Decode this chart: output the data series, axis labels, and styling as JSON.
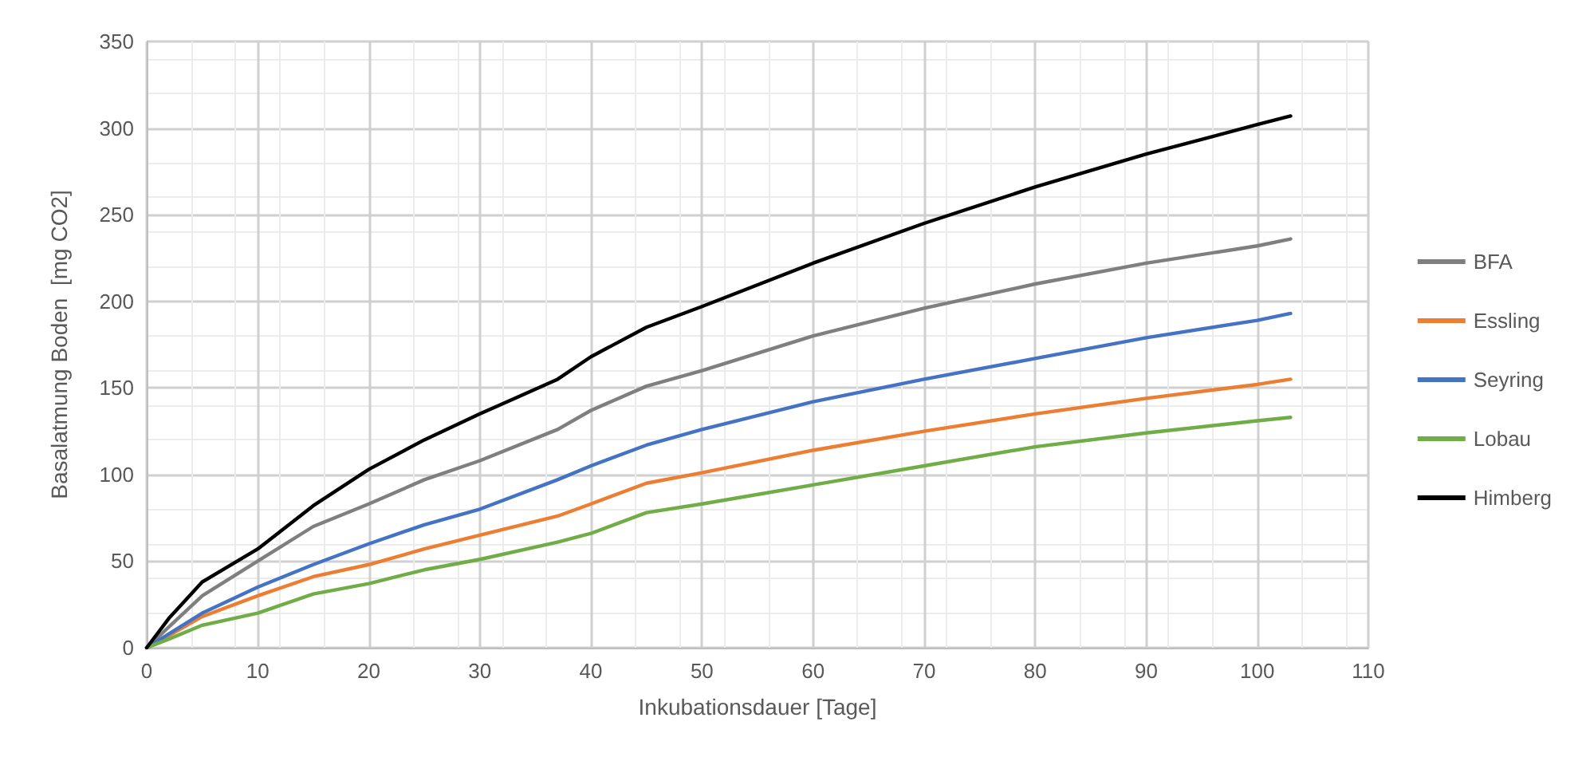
{
  "chart_data": {
    "type": "line",
    "xlabel": "Inkubationsdauer [Tage]",
    "ylabel": "Basalatmung Boden  [mg CO2]",
    "x": [
      0,
      2,
      5,
      10,
      15,
      20,
      25,
      30,
      37,
      40,
      45,
      50,
      60,
      70,
      80,
      90,
      100,
      103
    ],
    "series": [
      {
        "name": "BFA",
        "color": "#7f7f7f",
        "values": [
          0,
          12,
          30,
          50,
          70,
          83,
          97,
          108,
          126,
          137,
          151,
          160,
          180,
          196,
          210,
          222,
          232,
          236
        ]
      },
      {
        "name": "Essling",
        "color": "#ed7d31",
        "values": [
          0,
          7,
          18,
          30,
          41,
          48,
          57,
          65,
          76,
          83,
          95,
          101,
          114,
          125,
          135,
          144,
          152,
          155
        ]
      },
      {
        "name": "Seyring",
        "color": "#4472c4",
        "values": [
          0,
          8,
          20,
          35,
          48,
          60,
          71,
          80,
          97,
          105,
          117,
          126,
          142,
          155,
          167,
          179,
          189,
          193
        ]
      },
      {
        "name": "Lobau",
        "color": "#70ad47",
        "values": [
          0,
          5,
          13,
          20,
          31,
          37,
          45,
          51,
          61,
          66,
          78,
          83,
          94,
          105,
          116,
          124,
          131,
          133
        ]
      },
      {
        "name": "Himberg",
        "color": "#000000",
        "values": [
          0,
          17,
          38,
          57,
          82,
          103,
          120,
          135,
          155,
          168,
          185,
          197,
          222,
          245,
          266,
          285,
          302,
          307
        ]
      }
    ],
    "xlim": [
      0,
      110
    ],
    "xticks": [
      0,
      10,
      20,
      30,
      40,
      50,
      60,
      70,
      80,
      90,
      100,
      110
    ],
    "ylim": [
      0,
      350
    ],
    "yticks": [
      0,
      50,
      100,
      150,
      200,
      250,
      300,
      350
    ],
    "grid": true,
    "legend": "right",
    "marker": "none",
    "line_style": "solid"
  }
}
